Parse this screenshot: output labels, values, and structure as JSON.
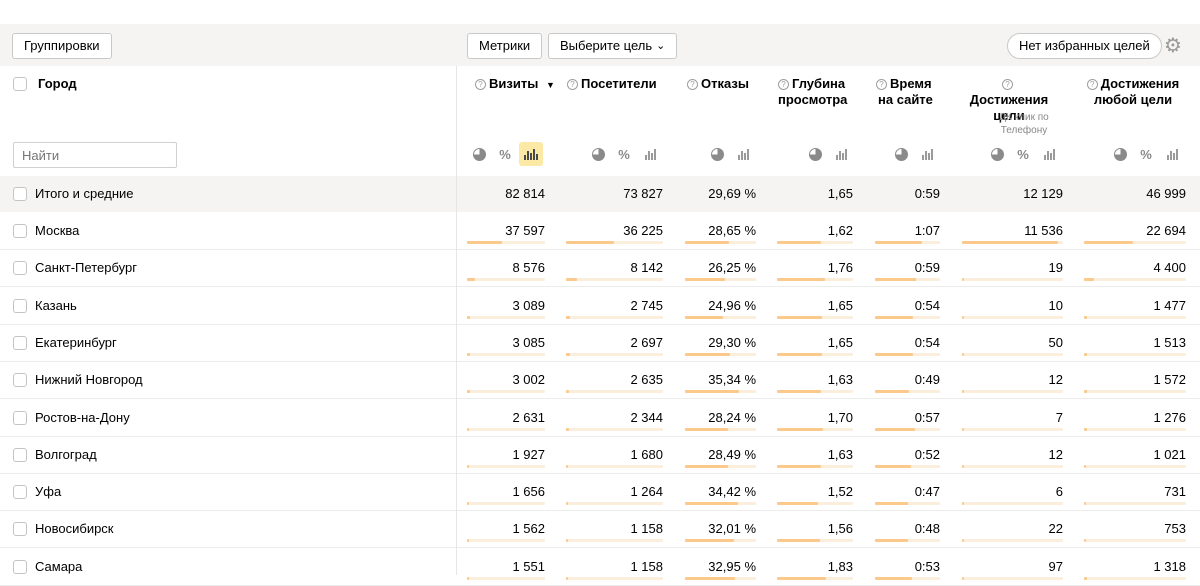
{
  "toolbar": {
    "groupings_label": "Группировки",
    "metrics_label": "Метрики",
    "goal_select_label": "Выберите цель",
    "favorites_label": "Нет избранных целей"
  },
  "table": {
    "city_header": "Город",
    "search_placeholder": "Найти",
    "columns": [
      {
        "key": "visits",
        "title": "Визиты",
        "sorted": "desc"
      },
      {
        "key": "visitors",
        "title": "Посетители"
      },
      {
        "key": "bounces",
        "title": "Отказы"
      },
      {
        "key": "depth",
        "title_line1": "Глубина",
        "title_line2": "просмотра"
      },
      {
        "key": "time",
        "title_line1": "Время",
        "title_line2": "на сайте"
      },
      {
        "key": "goal",
        "title_line1": "Достижения",
        "title_line2": "цели",
        "subtitle_line1": "ДК клик по",
        "subtitle_line2": "Телефону"
      },
      {
        "key": "anygoal",
        "title_line1": "Достижения",
        "title_line2": "любой цели"
      }
    ],
    "sort_indicator": "▼",
    "total": {
      "label": "Итого и средние",
      "values": [
        "82 814",
        "73 827",
        "29,69 %",
        "1,65",
        "0:59",
        "12 129",
        "46 999"
      ]
    },
    "rows": [
      {
        "label": "Москва",
        "values": [
          "37 597",
          "36 225",
          "28,65 %",
          "1,62",
          "1:07",
          "11 536",
          "22 694"
        ],
        "shares": [
          0.454,
          0.491,
          0.62,
          0.58,
          0.72,
          0.951,
          0.483
        ]
      },
      {
        "label": "Санкт-Петербург",
        "values": [
          "8 576",
          "8 142",
          "26,25 %",
          "1,76",
          "0:59",
          "19",
          "4 400"
        ],
        "shares": [
          0.104,
          0.11,
          0.57,
          0.63,
          0.63,
          0.002,
          0.094
        ]
      },
      {
        "label": "Казань",
        "values": [
          "3 089",
          "2 745",
          "24,96 %",
          "1,65",
          "0:54",
          "10",
          "1 477"
        ],
        "shares": [
          0.037,
          0.037,
          0.54,
          0.59,
          0.58,
          0.001,
          0.031
        ]
      },
      {
        "label": "Екатеринбург",
        "values": [
          "3 085",
          "2 697",
          "29,30 %",
          "1,65",
          "0:54",
          "50",
          "1 513"
        ],
        "shares": [
          0.037,
          0.037,
          0.63,
          0.59,
          0.58,
          0.004,
          0.032
        ]
      },
      {
        "label": "Нижний Новгород",
        "values": [
          "3 002",
          "2 635",
          "35,34 %",
          "1,63",
          "0:49",
          "12",
          "1 572"
        ],
        "shares": [
          0.036,
          0.036,
          0.76,
          0.58,
          0.52,
          0.001,
          0.033
        ]
      },
      {
        "label": "Ростов-на-Дону",
        "values": [
          "2 631",
          "2 344",
          "28,24 %",
          "1,70",
          "0:57",
          "7",
          "1 276"
        ],
        "shares": [
          0.032,
          0.032,
          0.61,
          0.61,
          0.61,
          0.001,
          0.027
        ]
      },
      {
        "label": "Волгоград",
        "values": [
          "1 927",
          "1 680",
          "28,49 %",
          "1,63",
          "0:52",
          "12",
          "1 021"
        ],
        "shares": [
          0.023,
          0.023,
          0.61,
          0.58,
          0.56,
          0.001,
          0.022
        ]
      },
      {
        "label": "Уфа",
        "values": [
          "1 656",
          "1 264",
          "34,42 %",
          "1,52",
          "0:47",
          "6",
          "731"
        ],
        "shares": [
          0.02,
          0.017,
          0.74,
          0.54,
          0.5,
          0.0005,
          0.016
        ]
      },
      {
        "label": "Новосибирск",
        "values": [
          "1 562",
          "1 158",
          "32,01 %",
          "1,56",
          "0:48",
          "22",
          "753"
        ],
        "shares": [
          0.019,
          0.016,
          0.69,
          0.56,
          0.51,
          0.002,
          0.016
        ]
      },
      {
        "label": "Самара",
        "values": [
          "1 551",
          "1 158",
          "32,95 %",
          "1,83",
          "0:53",
          "97",
          "1 318"
        ],
        "shares": [
          0.019,
          0.016,
          0.71,
          0.65,
          0.57,
          0.008,
          0.028
        ]
      }
    ]
  },
  "icons": {
    "settings": "gear-icon",
    "dropdown": "chevron-down-icon",
    "pie": "pie-chart-icon",
    "percent": "percent-icon",
    "bars": "bar-chart-icon",
    "help": "question-icon"
  },
  "colors": {
    "bar_fill": "#fbc98b",
    "bar_track": "#fbeedd",
    "active_icon_bg": "#fbe9a5",
    "toolbar_bg": "#f5f4f2"
  }
}
